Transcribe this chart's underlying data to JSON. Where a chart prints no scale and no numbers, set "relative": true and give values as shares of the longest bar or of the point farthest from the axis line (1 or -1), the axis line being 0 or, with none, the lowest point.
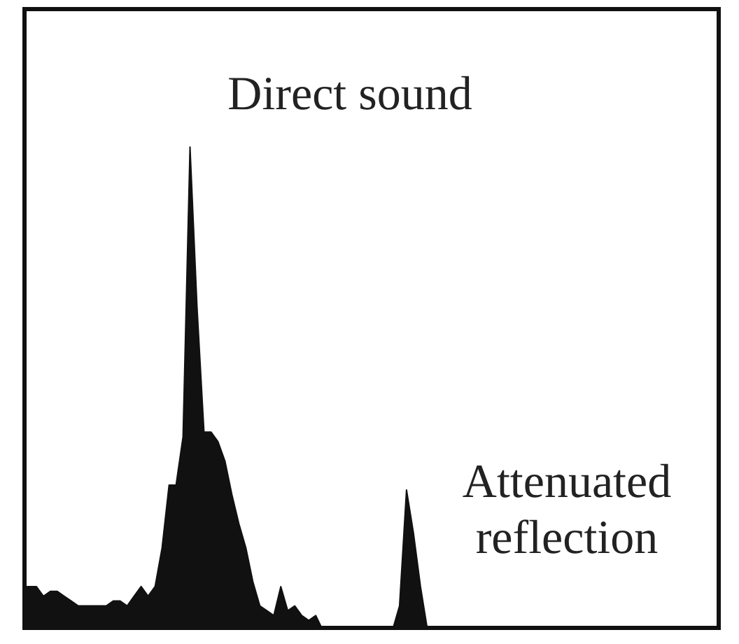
{
  "chart_data": {
    "type": "area",
    "relative": true,
    "color": "#111111",
    "categories": [
      null,
      null,
      null,
      null,
      null,
      null,
      null,
      null,
      null,
      null,
      null,
      null,
      null,
      null,
      null,
      null,
      null,
      null,
      null,
      null,
      null,
      null,
      null,
      null,
      null,
      null,
      null,
      null,
      null,
      null,
      null,
      null,
      null,
      null,
      null,
      null,
      null,
      null,
      null,
      null,
      null,
      null,
      null,
      null,
      null,
      null,
      null,
      null,
      null,
      null,
      null,
      null,
      null,
      null,
      null,
      null,
      null,
      null,
      null,
      null,
      null,
      null,
      null,
      null,
      null,
      null,
      null,
      null,
      null,
      null,
      null,
      null,
      null,
      null,
      null,
      null,
      null,
      null,
      null,
      null,
      null,
      null,
      null,
      null,
      null,
      null,
      null,
      null,
      null,
      null,
      null,
      null,
      null,
      null,
      null,
      null,
      null,
      null,
      null,
      null,
      null
    ],
    "values": [
      0.09,
      0.09,
      0.09,
      0.07,
      0.08,
      0.08,
      0.07,
      0.06,
      0.05,
      0.05,
      0.05,
      0.05,
      0.05,
      0.06,
      0.06,
      0.05,
      0.07,
      0.09,
      0.07,
      0.09,
      0.17,
      0.3,
      0.3,
      0.4,
      1.0,
      0.67,
      0.41,
      0.41,
      0.39,
      0.35,
      0.28,
      0.22,
      0.17,
      0.1,
      0.05,
      0.04,
      0.03,
      0.09,
      0.04,
      0.05,
      0.03,
      0.02,
      0.03,
      0,
      0,
      0,
      0,
      0,
      0,
      0,
      0,
      0,
      0,
      0,
      0.05,
      0.29,
      0.2,
      0.09,
      0,
      0,
      0,
      0,
      0,
      0,
      0,
      0,
      0,
      0,
      0,
      0,
      0,
      0,
      0,
      0,
      0,
      0,
      0,
      0,
      0,
      0,
      0,
      0,
      0,
      0,
      0,
      0,
      0,
      0,
      0,
      0,
      0,
      0,
      0,
      0,
      0,
      0,
      0,
      0,
      0,
      0,
      0
    ],
    "annotations": [
      "Direct sound",
      "Attenuated reflection"
    ]
  }
}
